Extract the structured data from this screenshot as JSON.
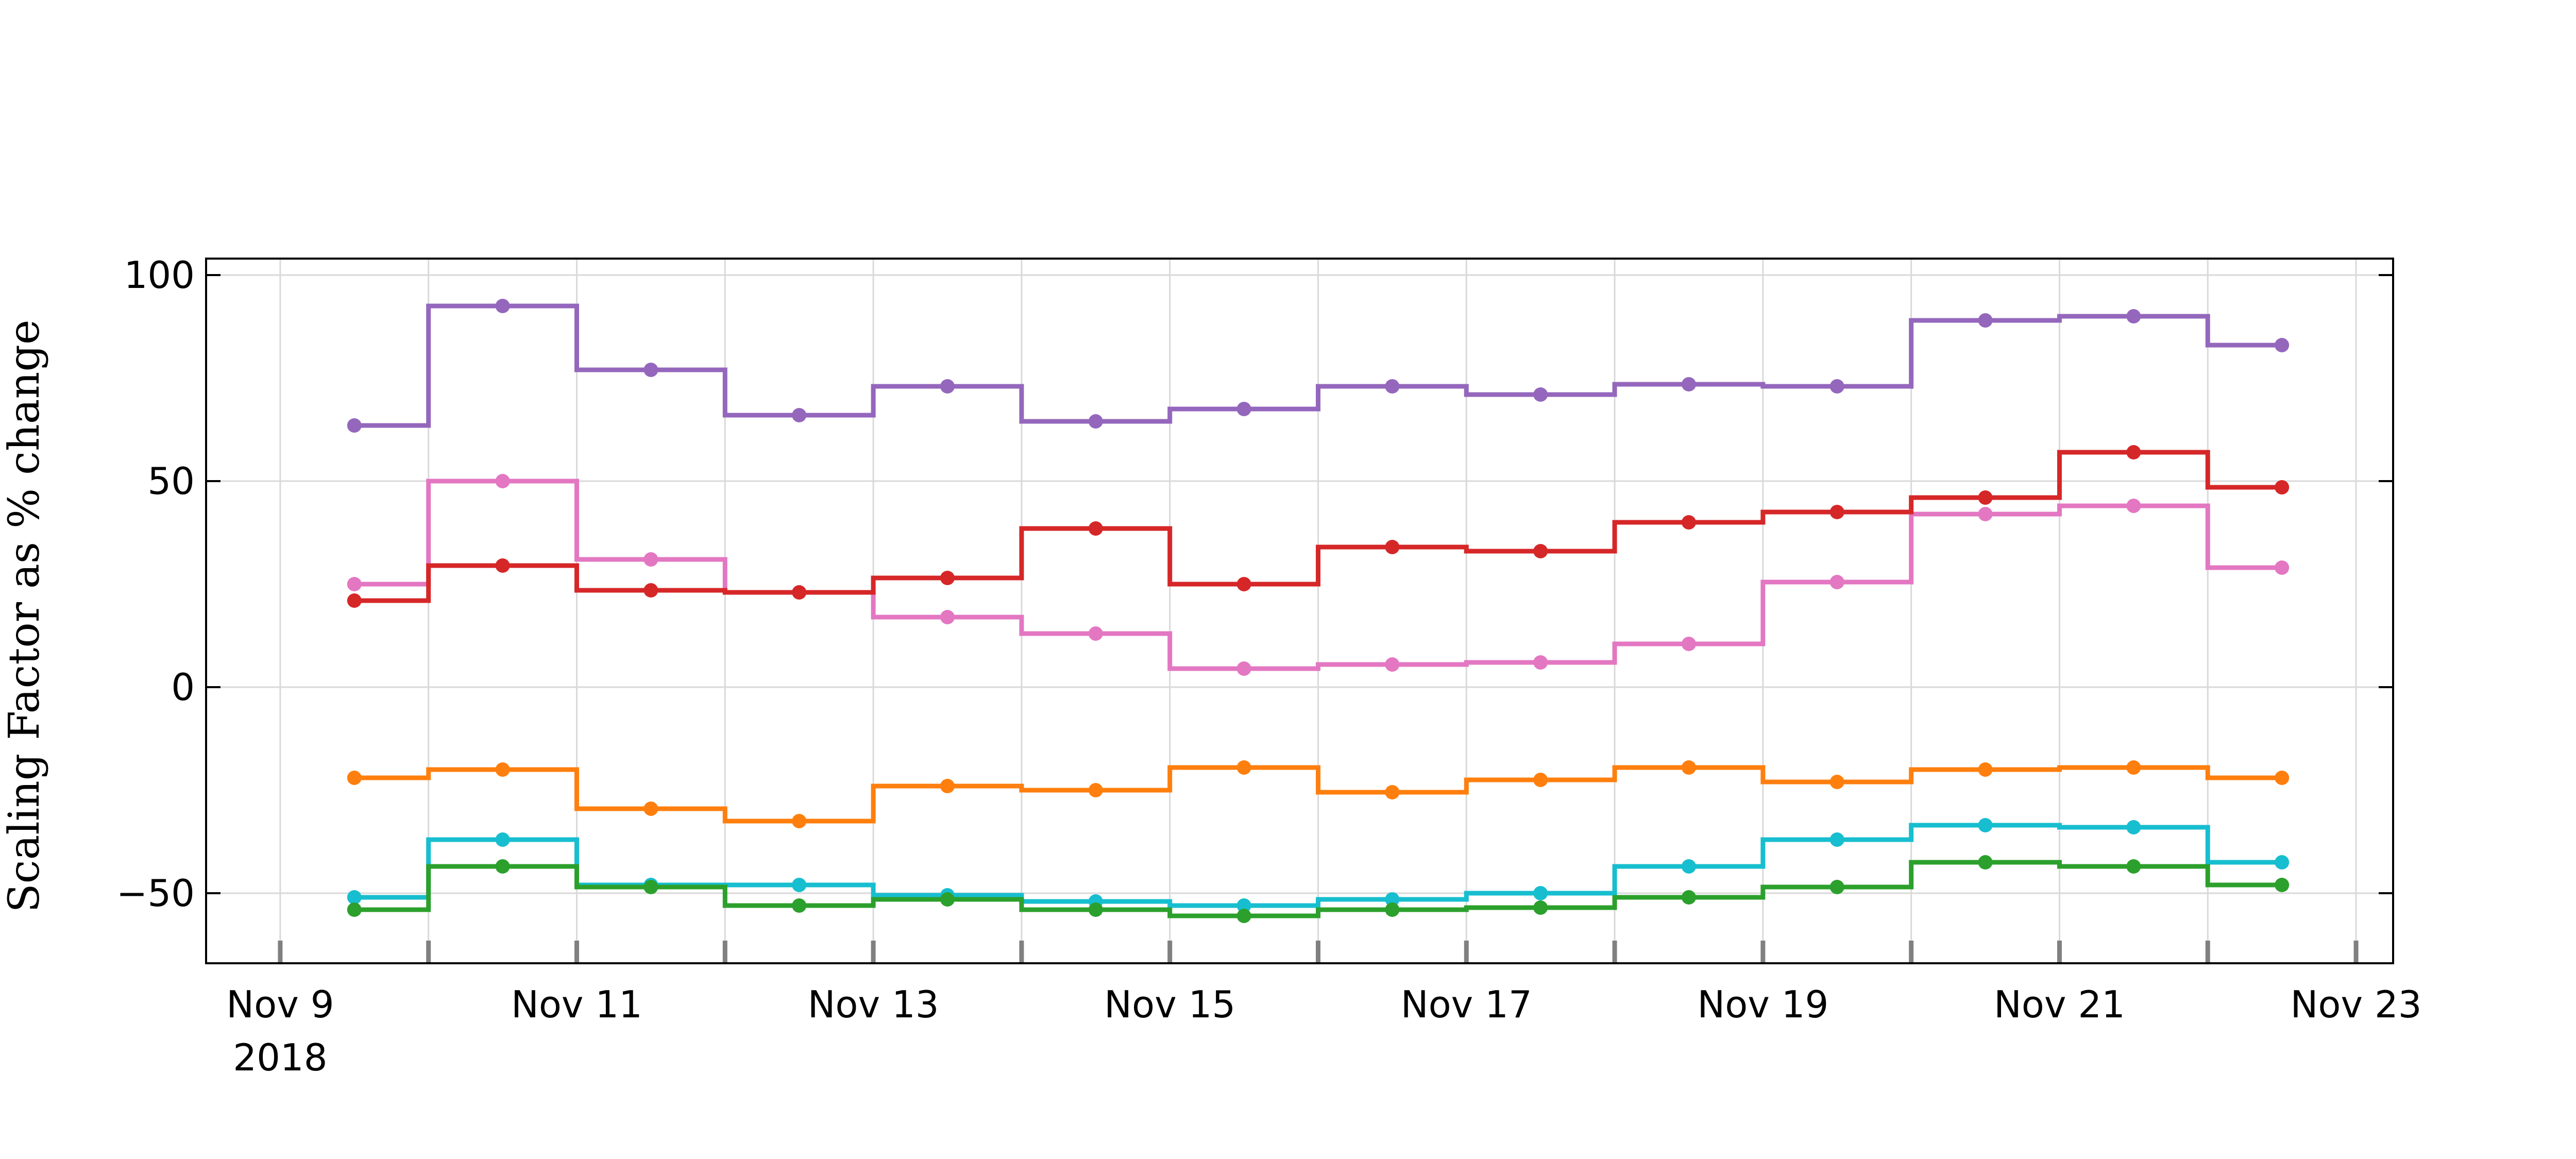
{
  "chart_data": {
    "type": "line",
    "step": "mid",
    "markers": true,
    "title": "",
    "xlabel": "",
    "ylabel": "Scaling Factor as % change",
    "ylim": [
      -67,
      104
    ],
    "xlim": [
      "2018-11-09",
      "2018-11-23"
    ],
    "grid": true,
    "x": [
      "2018-11-09",
      "2018-11-10",
      "2018-11-11",
      "2018-11-12",
      "2018-11-13",
      "2018-11-14",
      "2018-11-15",
      "2018-11-16",
      "2018-11-17",
      "2018-11-18",
      "2018-11-19",
      "2018-11-20",
      "2018-11-21",
      "2018-11-22"
    ],
    "x_ticks": [
      {
        "date": "2018-11-09",
        "label": "Nov 9",
        "sublabel": "2018"
      },
      {
        "date": "2018-11-11",
        "label": "Nov 11",
        "sublabel": ""
      },
      {
        "date": "2018-11-13",
        "label": "Nov 13",
        "sublabel": ""
      },
      {
        "date": "2018-11-15",
        "label": "Nov 15",
        "sublabel": ""
      },
      {
        "date": "2018-11-17",
        "label": "Nov 17",
        "sublabel": ""
      },
      {
        "date": "2018-11-19",
        "label": "Nov 19",
        "sublabel": ""
      },
      {
        "date": "2018-11-21",
        "label": "Nov 21",
        "sublabel": ""
      },
      {
        "date": "2018-11-23",
        "label": "Nov 23",
        "sublabel": ""
      }
    ],
    "minor_ticks": [
      "2018-11-09",
      "2018-11-10",
      "2018-11-11",
      "2018-11-12",
      "2018-11-13",
      "2018-11-14",
      "2018-11-15",
      "2018-11-16",
      "2018-11-17",
      "2018-11-18",
      "2018-11-19",
      "2018-11-20",
      "2018-11-21",
      "2018-11-22",
      "2018-11-23"
    ],
    "y_ticks": [
      -50,
      0,
      50,
      100
    ],
    "series": [
      {
        "color": "#9467bd",
        "values": [
          63.5,
          92.5,
          77,
          66,
          73,
          64.5,
          67.5,
          73,
          71,
          73.5,
          73,
          89,
          90,
          83
        ]
      },
      {
        "color": "#e377c2",
        "values": [
          25,
          50,
          31,
          23,
          17,
          13,
          4.5,
          5.5,
          6,
          10.5,
          25.5,
          42,
          44,
          29
        ]
      },
      {
        "color": "#d62728",
        "values": [
          21,
          29.5,
          23.5,
          23,
          26.5,
          38.5,
          25,
          34,
          33,
          40,
          42.5,
          46,
          57,
          48.5
        ]
      },
      {
        "color": "#ff7f0e",
        "values": [
          -22,
          -20,
          -29.5,
          -32.5,
          -24,
          -25,
          -19.5,
          -25.5,
          -22.5,
          -19.5,
          -23,
          -20,
          -19.5,
          -22
        ]
      },
      {
        "color": "#17becf",
        "values": [
          -51,
          -37,
          -48,
          -48,
          -50.5,
          -52,
          -53,
          -51.5,
          -50,
          -43.5,
          -37,
          -33.5,
          -34,
          -42.5
        ]
      },
      {
        "color": "#2ca02c",
        "values": [
          -54,
          -43.5,
          -48.5,
          -53,
          -51.5,
          -54,
          -55.5,
          -54,
          -53.5,
          -51,
          -48.5,
          -42.5,
          -43.5,
          -48
        ]
      }
    ]
  }
}
